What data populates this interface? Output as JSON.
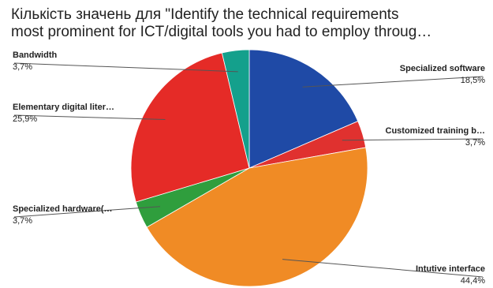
{
  "chart_data": {
    "type": "pie",
    "title": [
      "Кількість значень для \"Identify the technical requirements",
      "most prominent for ICT/digital tools you had to employ throug…"
    ],
    "slices": [
      {
        "label": "Specialized software",
        "value": 18.5,
        "display": "18,5%",
        "color": "#1f4aa6",
        "label_side": "right"
      },
      {
        "label": "Customized training b…",
        "value": 3.7,
        "display": "3,7%",
        "color": "#e0312f",
        "label_side": "right"
      },
      {
        "label": "Intutive interface",
        "value": 44.4,
        "display": "44,4%",
        "color": "#f08b25",
        "label_side": "right"
      },
      {
        "label": "Specialized hardware(…",
        "value": 3.7,
        "display": "3,7%",
        "color": "#2f9e3d",
        "label_side": "left"
      },
      {
        "label": "Elementary digital liter…",
        "value": 25.9,
        "display": "25,9%",
        "color": "#e52b27",
        "label_side": "left"
      },
      {
        "label": "Bandwidth",
        "value": 3.7,
        "display": "3,7%",
        "color": "#14a08c",
        "label_side": "left"
      }
    ],
    "start_angle_deg": 0,
    "direction": "clockwise",
    "legend": "none"
  }
}
